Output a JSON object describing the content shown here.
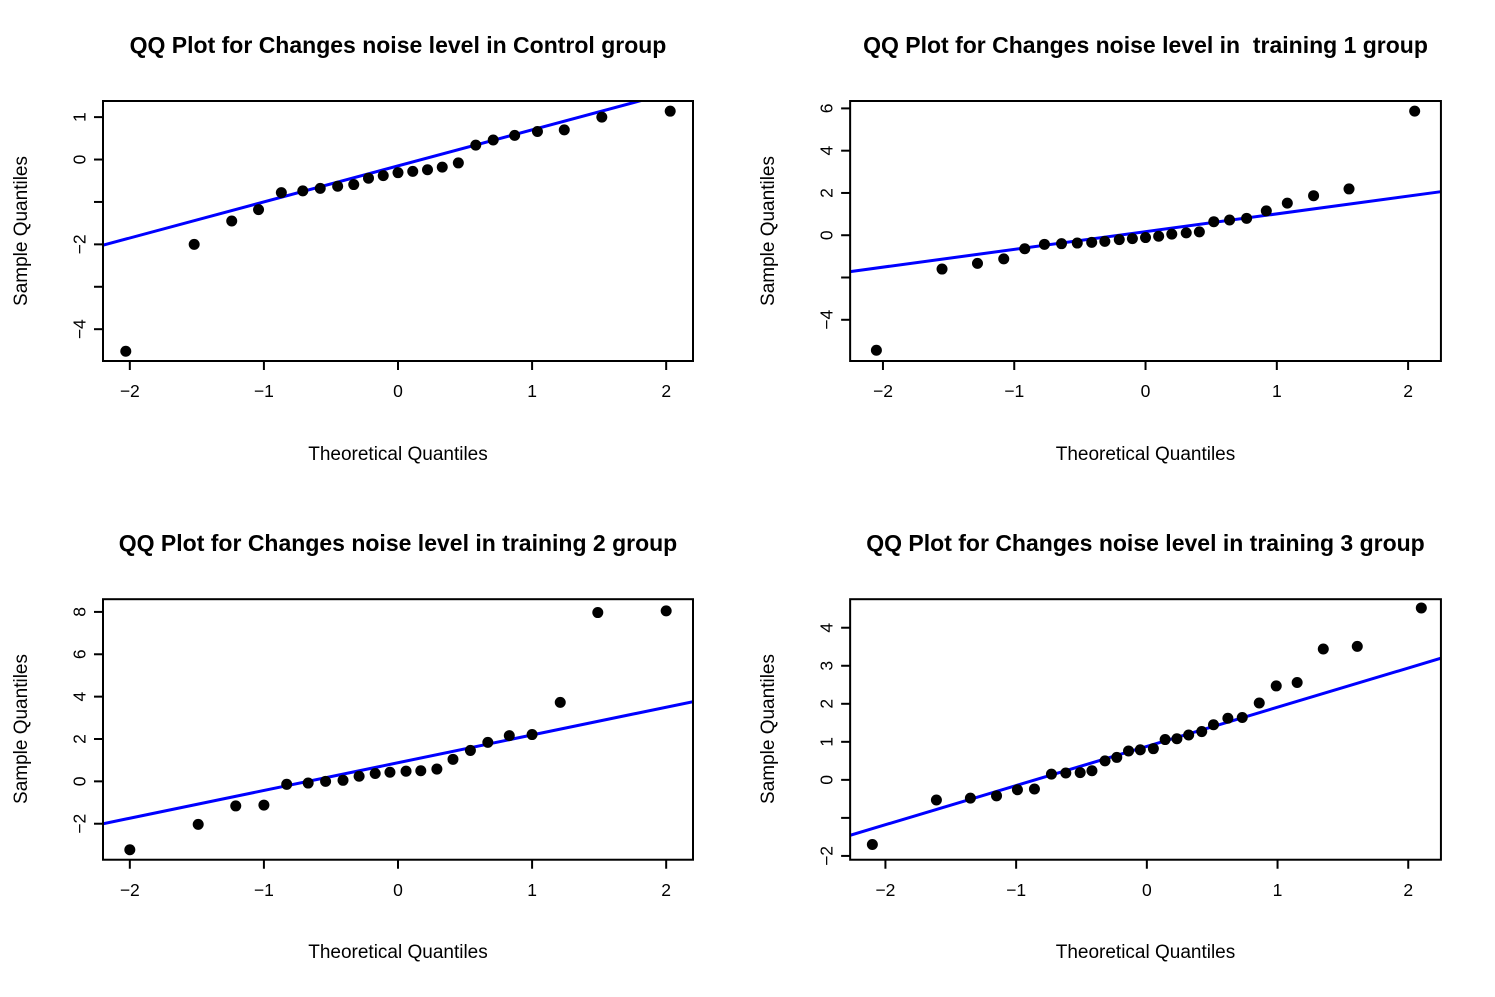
{
  "page": {
    "background": "#ffffff",
    "foreground": "#000000"
  },
  "chart_data": [
    {
      "type": "scatter",
      "variant": "qq-plot",
      "title": "QQ Plot for Changes noise level in Control group",
      "xlabel": "Theoretical Quantiles",
      "ylabel": "Sample Quantiles",
      "xlim": [
        -2.2,
        2.2
      ],
      "ylim": [
        -4.75,
        1.38
      ],
      "grid": false,
      "x_ticks": [
        {
          "v": -2,
          "label": "−2"
        },
        {
          "v": -1,
          "label": "−1"
        },
        {
          "v": 0,
          "label": "0"
        },
        {
          "v": 1,
          "label": "1"
        },
        {
          "v": 2,
          "label": "2"
        }
      ],
      "y_ticks": [
        {
          "v": 1,
          "label": "1"
        },
        {
          "v": 0,
          "label": "0"
        },
        {
          "v": -1,
          "label": ""
        },
        {
          "v": -2,
          "label": "−2"
        },
        {
          "v": -3,
          "label": ""
        },
        {
          "v": -4,
          "label": "−4"
        }
      ],
      "points": [
        [
          -2.03,
          -4.52
        ],
        [
          -1.52,
          -2.0
        ],
        [
          -1.24,
          -1.45
        ],
        [
          -1.04,
          -1.18
        ],
        [
          -0.87,
          -0.78
        ],
        [
          -0.71,
          -0.74
        ],
        [
          -0.58,
          -0.68
        ],
        [
          -0.45,
          -0.63
        ],
        [
          -0.33,
          -0.59
        ],
        [
          -0.22,
          -0.44
        ],
        [
          -0.11,
          -0.38
        ],
        [
          0.0,
          -0.31
        ],
        [
          0.11,
          -0.28
        ],
        [
          0.22,
          -0.24
        ],
        [
          0.33,
          -0.18
        ],
        [
          0.45,
          -0.08
        ],
        [
          0.58,
          0.34
        ],
        [
          0.71,
          0.46
        ],
        [
          0.87,
          0.57
        ],
        [
          1.04,
          0.66
        ],
        [
          1.24,
          0.7
        ],
        [
          1.52,
          1.0
        ],
        [
          2.03,
          1.14
        ]
      ],
      "ref_line": {
        "slope": 0.85,
        "intercept": -0.15
      },
      "point_color": "#000000",
      "line_color": "#0000ff"
    },
    {
      "type": "scatter",
      "variant": "qq-plot",
      "title": "QQ Plot for Changes noise level in  training 1 group",
      "xlabel": "Theoretical Quantiles",
      "ylabel": "Sample Quantiles",
      "xlim": [
        -2.25,
        2.25
      ],
      "ylim": [
        -5.95,
        6.35
      ],
      "grid": false,
      "x_ticks": [
        {
          "v": -2,
          "label": "−2"
        },
        {
          "v": -1,
          "label": "−1"
        },
        {
          "v": 0,
          "label": "0"
        },
        {
          "v": 1,
          "label": "1"
        },
        {
          "v": 2,
          "label": "2"
        }
      ],
      "y_ticks": [
        {
          "v": 6,
          "label": "6"
        },
        {
          "v": 4,
          "label": "4"
        },
        {
          "v": 2,
          "label": "2"
        },
        {
          "v": 0,
          "label": "0"
        },
        {
          "v": -2,
          "label": ""
        },
        {
          "v": -4,
          "label": "−4"
        }
      ],
      "points": [
        [
          -2.05,
          -5.44
        ],
        [
          -1.55,
          -1.6
        ],
        [
          -1.28,
          -1.33
        ],
        [
          -1.08,
          -1.12
        ],
        [
          -0.92,
          -0.64
        ],
        [
          -0.77,
          -0.43
        ],
        [
          -0.64,
          -0.4
        ],
        [
          -0.52,
          -0.37
        ],
        [
          -0.41,
          -0.34
        ],
        [
          -0.31,
          -0.29
        ],
        [
          -0.2,
          -0.21
        ],
        [
          -0.1,
          -0.16
        ],
        [
          0.0,
          -0.11
        ],
        [
          0.1,
          -0.05
        ],
        [
          0.2,
          0.05
        ],
        [
          0.31,
          0.11
        ],
        [
          0.41,
          0.16
        ],
        [
          0.52,
          0.64
        ],
        [
          0.64,
          0.72
        ],
        [
          0.77,
          0.8
        ],
        [
          0.92,
          1.15
        ],
        [
          1.08,
          1.52
        ],
        [
          1.28,
          1.87
        ],
        [
          1.55,
          2.19
        ],
        [
          2.05,
          5.87
        ]
      ],
      "ref_line": {
        "slope": 0.84,
        "intercept": 0.17
      },
      "point_color": "#000000",
      "line_color": "#0000ff"
    },
    {
      "type": "scatter",
      "variant": "qq-plot",
      "title": "QQ Plot for Changes noise level in training 2 group",
      "xlabel": "Theoretical Quantiles",
      "ylabel": "Sample Quantiles",
      "xlim": [
        -2.2,
        2.2
      ],
      "ylim": [
        -3.7,
        8.6
      ],
      "grid": false,
      "x_ticks": [
        {
          "v": -2,
          "label": "−2"
        },
        {
          "v": -1,
          "label": "−1"
        },
        {
          "v": 0,
          "label": "0"
        },
        {
          "v": 1,
          "label": "1"
        },
        {
          "v": 2,
          "label": "2"
        }
      ],
      "y_ticks": [
        {
          "v": 8,
          "label": "8"
        },
        {
          "v": 6,
          "label": "6"
        },
        {
          "v": 4,
          "label": "4"
        },
        {
          "v": 2,
          "label": "2"
        },
        {
          "v": 0,
          "label": "0"
        },
        {
          "v": -2,
          "label": "−2"
        }
      ],
      "points": [
        [
          -2.0,
          -3.23
        ],
        [
          -1.49,
          -2.03
        ],
        [
          -1.21,
          -1.16
        ],
        [
          -1.0,
          -1.12
        ],
        [
          -0.83,
          -0.14
        ],
        [
          -0.67,
          -0.08
        ],
        [
          -0.54,
          0.0
        ],
        [
          -0.41,
          0.05
        ],
        [
          -0.29,
          0.24
        ],
        [
          -0.17,
          0.37
        ],
        [
          -0.06,
          0.43
        ],
        [
          0.06,
          0.48
        ],
        [
          0.17,
          0.5
        ],
        [
          0.29,
          0.58
        ],
        [
          0.41,
          1.04
        ],
        [
          0.54,
          1.46
        ],
        [
          0.67,
          1.84
        ],
        [
          0.83,
          2.16
        ],
        [
          1.0,
          2.21
        ],
        [
          1.21,
          3.73
        ],
        [
          1.49,
          7.97
        ],
        [
          2.0,
          8.05
        ]
      ],
      "ref_line": {
        "slope": 1.31,
        "intercept": 0.88
      },
      "point_color": "#000000",
      "line_color": "#0000ff"
    },
    {
      "type": "scatter",
      "variant": "qq-plot",
      "title": "QQ Plot for Changes noise level in training 3 group",
      "xlabel": "Theoretical Quantiles",
      "ylabel": "Sample Quantiles",
      "xlim": [
        -2.27,
        2.25
      ],
      "ylim": [
        -2.1,
        4.75
      ],
      "grid": false,
      "x_ticks": [
        {
          "v": -2,
          "label": "−2"
        },
        {
          "v": -1,
          "label": "−1"
        },
        {
          "v": 0,
          "label": "0"
        },
        {
          "v": 1,
          "label": "1"
        },
        {
          "v": 2,
          "label": "2"
        }
      ],
      "y_ticks": [
        {
          "v": 4,
          "label": "4"
        },
        {
          "v": 3,
          "label": "3"
        },
        {
          "v": 2,
          "label": "2"
        },
        {
          "v": 1,
          "label": "1"
        },
        {
          "v": 0,
          "label": "0"
        },
        {
          "v": -1,
          "label": ""
        },
        {
          "v": -2,
          "label": "−2"
        }
      ],
      "points": [
        [
          -2.1,
          -1.7
        ],
        [
          -1.61,
          -0.53
        ],
        [
          -1.35,
          -0.48
        ],
        [
          -1.15,
          -0.42
        ],
        [
          -0.99,
          -0.26
        ],
        [
          -0.86,
          -0.24
        ],
        [
          -0.73,
          0.15
        ],
        [
          -0.62,
          0.18
        ],
        [
          -0.51,
          0.19
        ],
        [
          -0.42,
          0.24
        ],
        [
          -0.32,
          0.5
        ],
        [
          -0.23,
          0.59
        ],
        [
          -0.14,
          0.76
        ],
        [
          -0.05,
          0.79
        ],
        [
          0.05,
          0.82
        ],
        [
          0.14,
          1.06
        ],
        [
          0.23,
          1.08
        ],
        [
          0.32,
          1.18
        ],
        [
          0.42,
          1.27
        ],
        [
          0.51,
          1.45
        ],
        [
          0.62,
          1.62
        ],
        [
          0.73,
          1.64
        ],
        [
          0.86,
          2.02
        ],
        [
          0.99,
          2.47
        ],
        [
          1.15,
          2.56
        ],
        [
          1.35,
          3.44
        ],
        [
          1.61,
          3.51
        ],
        [
          2.1,
          4.52
        ]
      ],
      "ref_line": {
        "slope": 1.03,
        "intercept": 0.88
      },
      "point_color": "#000000",
      "line_color": "#0000ff"
    }
  ]
}
